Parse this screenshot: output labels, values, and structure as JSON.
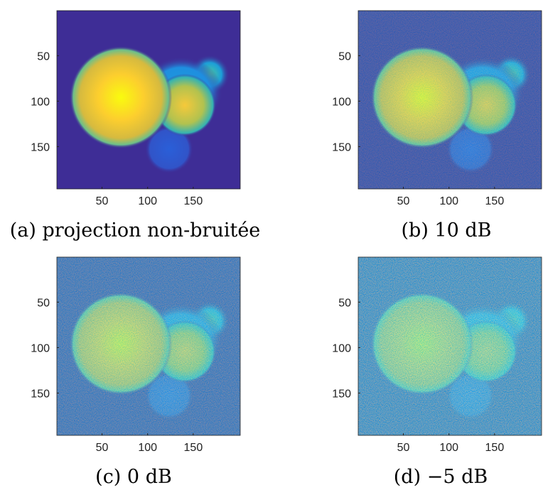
{
  "panels": [
    {
      "caption": "(a) projection non-bruitée"
    },
    {
      "caption": "(b) 10 dB"
    },
    {
      "caption": "(c) 0 dB"
    },
    {
      "caption": "(d) −5 dB"
    }
  ],
  "xlim": [
    0.5,
    201.5
  ],
  "ylim": [
    0.5,
    196.5
  ],
  "xticks": [
    50,
    100,
    150
  ],
  "yticks": [
    50,
    100,
    150
  ]
}
